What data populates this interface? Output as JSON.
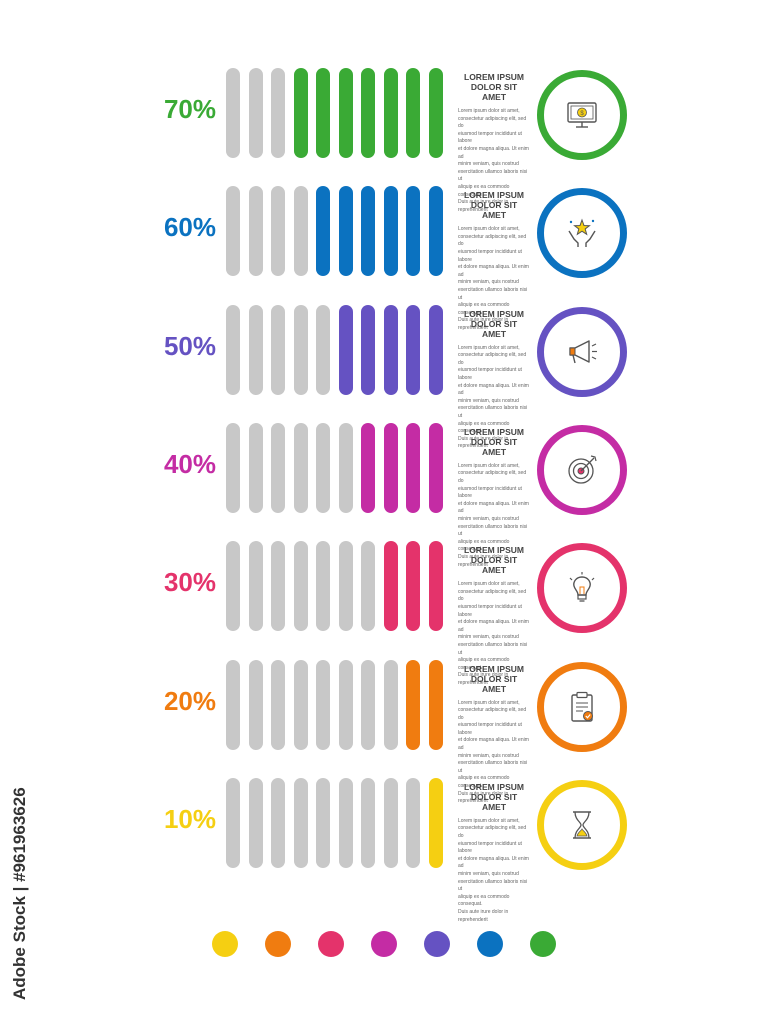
{
  "rows": [
    {
      "percent_label": "70%",
      "value": 70,
      "color": "#3aaa35",
      "icon": "money-monitor-icon",
      "title": "LOREM IPSUM\nDOLOR SIT AMET",
      "body": "Lorem ipsum dolor sit amet,\nconsectetur adipiscing elit, sed do\neiusmod tempor incididunt ut labore\net dolore magna aliqua. Ut enim ad\nminim veniam, quis nostrud\nexercitation ullamco laboris nisi ut\naliquip ex ea commodo consequat.\nDuis aute irure dolor in reprehenderit"
    },
    {
      "percent_label": "60%",
      "value": 60,
      "color": "#0b72c0",
      "icon": "hands-star-icon",
      "title": "LOREM IPSUM\nDOLOR SIT AMET",
      "body": "Lorem ipsum dolor sit amet,\nconsectetur adipiscing elit, sed do\neiusmod tempor incididunt ut labore\net dolore magna aliqua. Ut enim ad\nminim veniam, quis nostrud\nexercitation ullamco laboris nisi ut\naliquip ex ea commodo consequat.\nDuis aute irure dolor in reprehenderit"
    },
    {
      "percent_label": "50%",
      "value": 50,
      "color": "#6552c2",
      "icon": "megaphone-icon",
      "title": "LOREM IPSUM\nDOLOR SIT AMET",
      "body": "Lorem ipsum dolor sit amet,\nconsectetur adipiscing elit, sed do\neiusmod tempor incididunt ut labore\net dolore magna aliqua. Ut enim ad\nminim veniam, quis nostrud\nexercitation ullamco laboris nisi ut\naliquip ex ea commodo consequat.\nDuis aute irure dolor in reprehenderit"
    },
    {
      "percent_label": "40%",
      "value": 40,
      "color": "#c42ca4",
      "icon": "target-arrow-icon",
      "title": "LOREM IPSUM\nDOLOR SIT AMET",
      "body": "Lorem ipsum dolor sit amet,\nconsectetur adipiscing elit, sed do\neiusmod tempor incididunt ut labore\net dolore magna aliqua. Ut enim ad\nminim veniam, quis nostrud\nexercitation ullamco laboris nisi ut\naliquip ex ea commodo consequat.\nDuis aute irure dolor in reprehenderit"
    },
    {
      "percent_label": "30%",
      "value": 30,
      "color": "#e4336b",
      "icon": "lightbulb-icon",
      "title": "LOREM IPSUM\nDOLOR SIT AMET",
      "body": "Lorem ipsum dolor sit amet,\nconsectetur adipiscing elit, sed do\neiusmod tempor incididunt ut labore\net dolore magna aliqua. Ut enim ad\nminim veniam, quis nostrud\nexercitation ullamco laboris nisi ut\naliquip ex ea commodo consequat.\nDuis aute irure dolor in reprehenderit"
    },
    {
      "percent_label": "20%",
      "value": 20,
      "color": "#f07c10",
      "icon": "clipboard-check-icon",
      "title": "LOREM IPSUM\nDOLOR SIT AMET",
      "body": "Lorem ipsum dolor sit amet,\nconsectetur adipiscing elit, sed do\neiusmod tempor incididunt ut labore\net dolore magna aliqua. Ut enim ad\nminim veniam, quis nostrud\nexercitation ullamco laboris nisi ut\naliquip ex ea commodo consequat.\nDuis aute irure dolor in reprehenderit"
    },
    {
      "percent_label": "10%",
      "value": 10,
      "color": "#f5cf12",
      "icon": "hourglass-icon",
      "title": "LOREM IPSUM\nDOLOR SIT AMET",
      "body": "Lorem ipsum dolor sit amet,\nconsectetur adipiscing elit, sed do\neiusmod tempor incididunt ut labore\net dolore magna aliqua. Ut enim ad\nminim veniam, quis nostrud\nexercitation ullamco laboris nisi ut\naliquip ex ea commodo consequat.\nDuis aute irure dolor in reprehenderit"
    }
  ],
  "bar_count": 10,
  "inactive_bar_color": "#c8c8c8",
  "palette_dots": [
    "#f5cf12",
    "#f07c10",
    "#e4336b",
    "#c42ca4",
    "#6552c2",
    "#0b72c0",
    "#3aaa35"
  ],
  "watermark": "Adobe Stock | #961963626"
}
